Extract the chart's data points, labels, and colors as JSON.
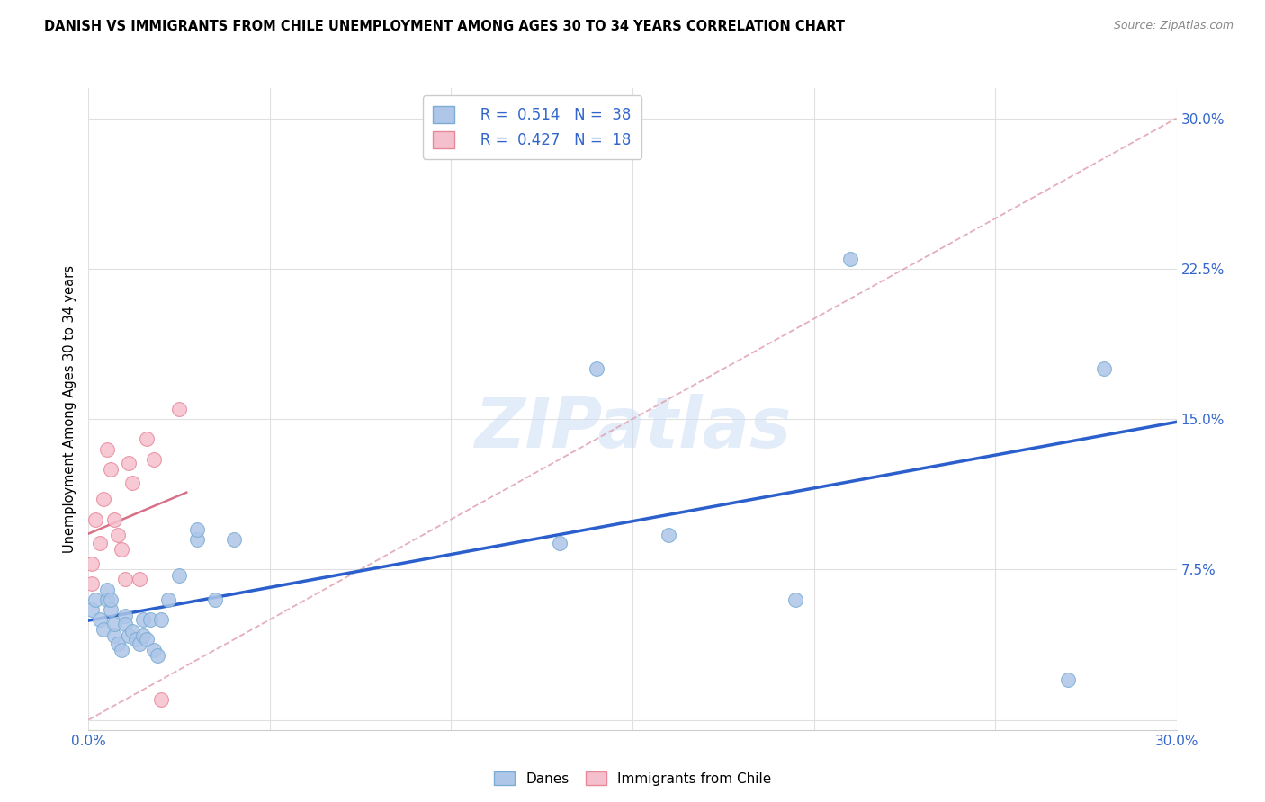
{
  "title": "DANISH VS IMMIGRANTS FROM CHILE UNEMPLOYMENT AMONG AGES 30 TO 34 YEARS CORRELATION CHART",
  "source": "Source: ZipAtlas.com",
  "ylabel": "Unemployment Among Ages 30 to 34 years",
  "xlim": [
    0.0,
    0.3
  ],
  "ylim": [
    -0.005,
    0.315
  ],
  "xticks": [
    0.0,
    0.05,
    0.1,
    0.15,
    0.2,
    0.25,
    0.3
  ],
  "xticklabels": [
    "0.0%",
    "",
    "",
    "",
    "",
    "",
    "30.0%"
  ],
  "ytick_positions": [
    0.0,
    0.075,
    0.15,
    0.225,
    0.3
  ],
  "yticklabels": [
    "",
    "7.5%",
    "15.0%",
    "22.5%",
    "30.0%"
  ],
  "legend_r1": "0.514",
  "legend_n1": "38",
  "legend_r2": "0.427",
  "legend_n2": "18",
  "danes_color": "#aec6e8",
  "danes_edge_color": "#7badd4",
  "chile_color": "#f5c0ce",
  "chile_edge_color": "#e8899a",
  "danes_line_color": "#2b5fcc",
  "chile_line_color": "#d4607a",
  "diag_line_color": "#e0a0b0",
  "r_n_color": "#3366cc",
  "danes_x": [
    0.001,
    0.002,
    0.003,
    0.004,
    0.005,
    0.005,
    0.006,
    0.006,
    0.007,
    0.007,
    0.008,
    0.009,
    0.01,
    0.01,
    0.011,
    0.012,
    0.013,
    0.014,
    0.015,
    0.015,
    0.016,
    0.017,
    0.018,
    0.019,
    0.02,
    0.022,
    0.025,
    0.03,
    0.03,
    0.035,
    0.04,
    0.13,
    0.14,
    0.16,
    0.195,
    0.21,
    0.27,
    0.28
  ],
  "danes_y": [
    0.055,
    0.06,
    0.05,
    0.045,
    0.06,
    0.065,
    0.055,
    0.06,
    0.042,
    0.048,
    0.038,
    0.035,
    0.052,
    0.048,
    0.042,
    0.044,
    0.04,
    0.038,
    0.042,
    0.05,
    0.04,
    0.05,
    0.035,
    0.032,
    0.05,
    0.06,
    0.072,
    0.09,
    0.095,
    0.06,
    0.09,
    0.088,
    0.175,
    0.092,
    0.06,
    0.23,
    0.02,
    0.175
  ],
  "chile_x": [
    0.001,
    0.001,
    0.002,
    0.003,
    0.004,
    0.005,
    0.006,
    0.007,
    0.008,
    0.009,
    0.01,
    0.011,
    0.012,
    0.014,
    0.016,
    0.018,
    0.02,
    0.025
  ],
  "chile_y": [
    0.068,
    0.078,
    0.1,
    0.088,
    0.11,
    0.135,
    0.125,
    0.1,
    0.092,
    0.085,
    0.07,
    0.128,
    0.118,
    0.07,
    0.14,
    0.13,
    0.01,
    0.155
  ],
  "watermark": "ZIPatlas",
  "background_color": "#ffffff",
  "grid_color": "#e0e0e0"
}
